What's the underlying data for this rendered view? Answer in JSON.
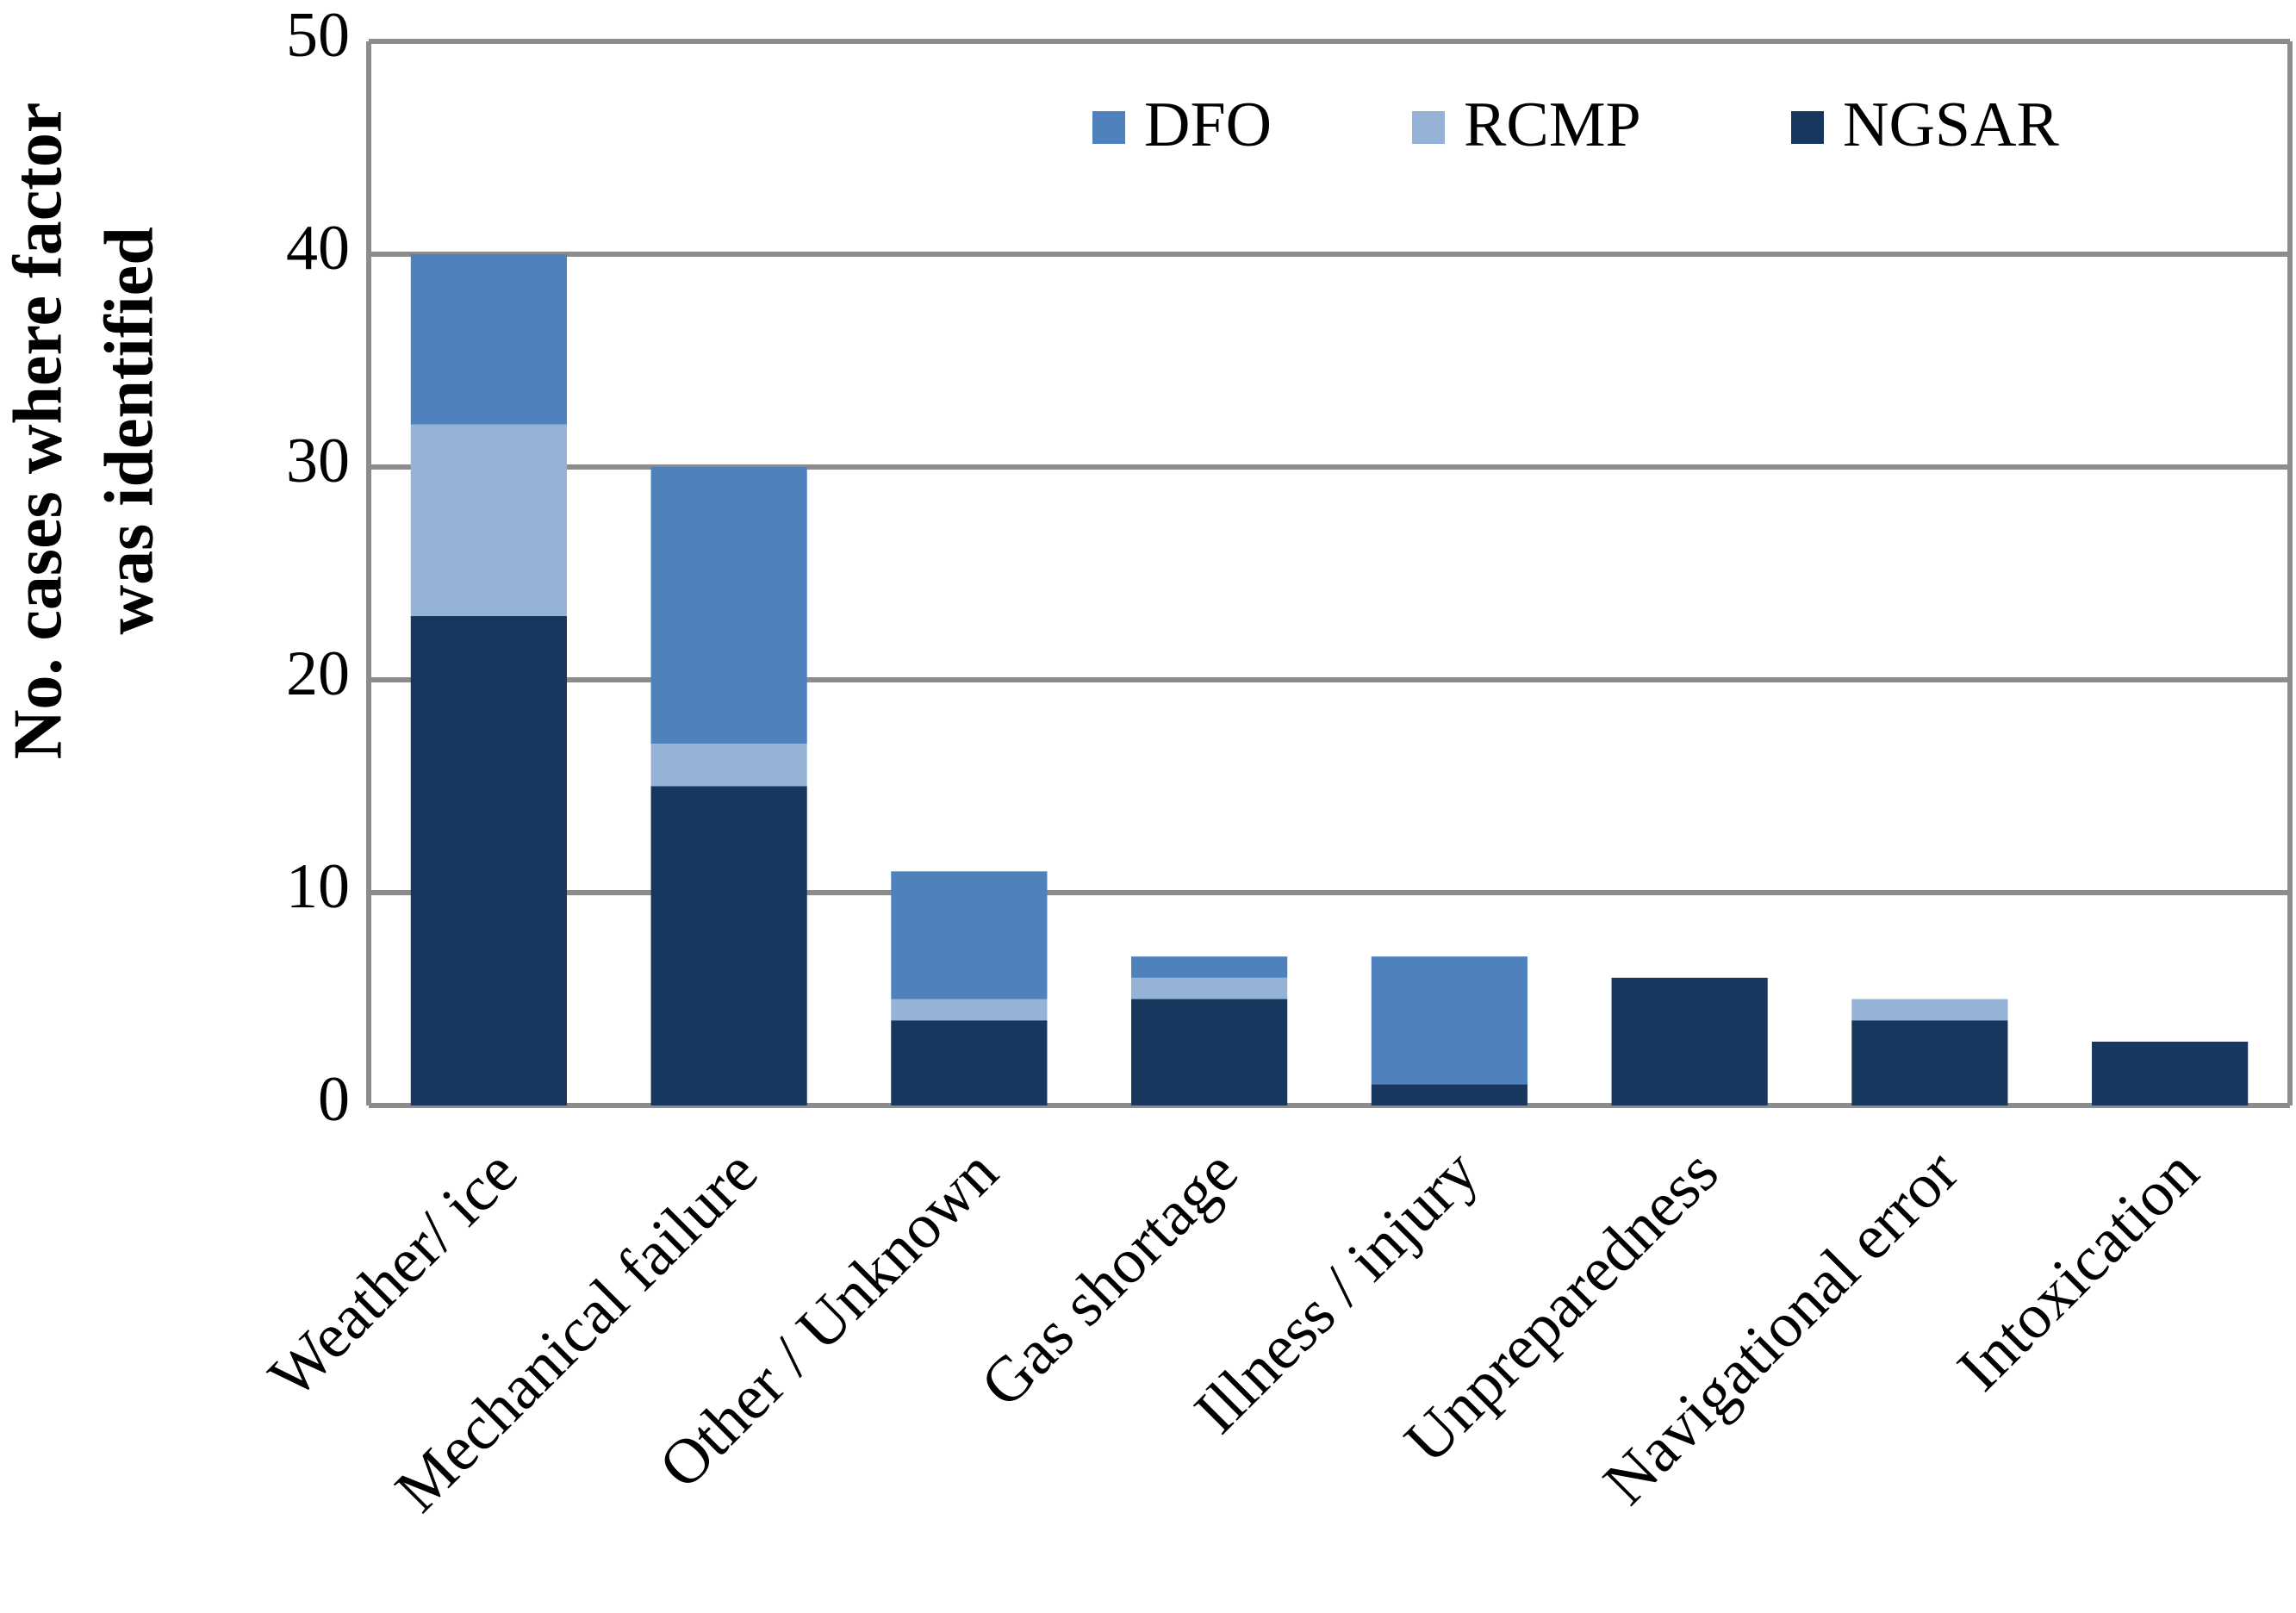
{
  "chart_data": {
    "type": "stacked_bar",
    "ylabel": [
      "No. cases where factor",
      "was identified"
    ],
    "categories": [
      "Weather/ ice",
      "Mechanical failure",
      "Other / Unknown",
      "Gas shortage",
      "Illness / injury",
      "Unpreparedness",
      "Navigational error",
      "Intoxication"
    ],
    "series": [
      {
        "name": "DFO",
        "color": "#4f81bd",
        "values": [
          8,
          13,
          6,
          1,
          6,
          0,
          0,
          0
        ]
      },
      {
        "name": "RCMP",
        "color": "#95b3d7",
        "values": [
          9,
          2,
          1,
          1,
          0,
          0,
          1,
          0
        ]
      },
      {
        "name": "NGSAR",
        "color": "#17375e",
        "values": [
          23,
          15,
          4,
          5,
          1,
          6,
          4,
          3
        ]
      }
    ],
    "ylim": [
      0,
      50
    ],
    "yticks": [
      0,
      10,
      20,
      30,
      40,
      50
    ],
    "grid": true
  }
}
